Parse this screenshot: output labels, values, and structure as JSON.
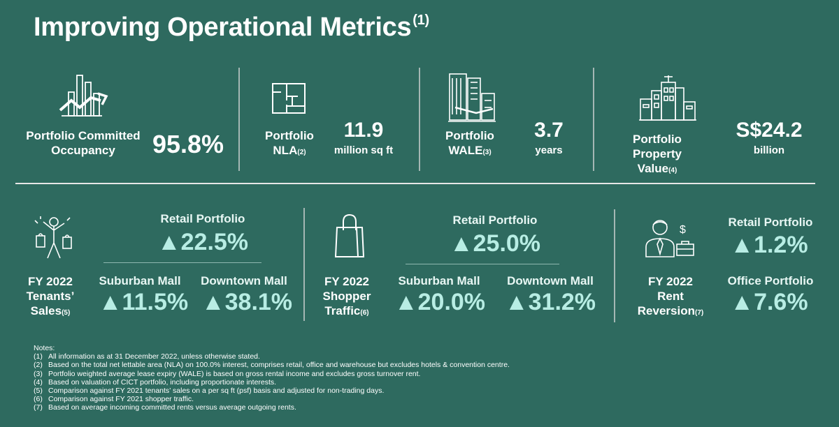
{
  "title": {
    "text": "Improving Operational Metrics",
    "sup": "(1)"
  },
  "top_metrics": {
    "occupancy": {
      "label_l1": "Portfolio Committed",
      "label_l2": "Occupancy",
      "value": "95.8%"
    },
    "nla": {
      "label_l1": "Portfolio",
      "label_l2": "NLA",
      "sup": "(2)",
      "value": "11.9",
      "unit": "million sq ft"
    },
    "wale": {
      "label_l1": "Portfolio",
      "label_l2": "WALE",
      "sup": "(3)",
      "value": "3.7",
      "unit": "years"
    },
    "property_value": {
      "label_l1": "Portfolio Property",
      "label_l2": "Value",
      "sup": "(4)",
      "value": "S$24.2",
      "unit": "billion"
    }
  },
  "tenant_sales": {
    "label_l1": "FY 2022",
    "label_l2": "Tenants’",
    "label_l3": "Sales",
    "sup": "(5)",
    "retail_label": "Retail Portfolio",
    "retail_value": "▲22.5%",
    "suburban_label": "Suburban Mall",
    "suburban_value": "▲11.5%",
    "downtown_label": "Downtown Mall",
    "downtown_value": "▲38.1%"
  },
  "shopper_traffic": {
    "label_l1": "FY 2022",
    "label_l2": "Shopper",
    "label_l3": "Traffic",
    "sup": "(6)",
    "retail_label": "Retail Portfolio",
    "retail_value": "▲25.0%",
    "suburban_label": "Suburban Mall",
    "suburban_value": "▲20.0%",
    "downtown_label": "Downtown Mall",
    "downtown_value": "▲31.2%"
  },
  "rent_reversion": {
    "label_l1": "FY 2022",
    "label_l2": "Rent",
    "label_l3": "Reversion",
    "sup": "(7)",
    "retail_label": "Retail Portfolio",
    "retail_value": "▲1.2%",
    "office_label": "Office Portfolio",
    "office_value": "▲7.6%"
  },
  "notes": {
    "heading": "Notes:",
    "items": [
      {
        "num": "(1)",
        "text": "All information as at 31 December 2022, unless otherwise stated."
      },
      {
        "num": "(2)",
        "text": "Based on the total net lettable area (NLA) on 100.0% interest, comprises retail, office and warehouse but excludes hotels & convention centre."
      },
      {
        "num": "(3)",
        "text": "Portfolio weighted average lease expiry (WALE) is based on gross rental income and excludes gross turnover rent."
      },
      {
        "num": "(4)",
        "text": "Based on valuation of CICT portfolio, including proportionate interests."
      },
      {
        "num": "(5)",
        "text": "Comparison against FY 2021 tenants’ sales on a per sq ft (psf) basis and adjusted for non-trading days."
      },
      {
        "num": "(6)",
        "text": "Comparison against FY 2021 shopper traffic."
      },
      {
        "num": "(7)",
        "text": "Based on average incoming committed rents versus average outgoing rents."
      }
    ]
  },
  "icons": {
    "occupancy": "bar-chart-growth-icon",
    "nla": "floor-plan-icon",
    "wale": "buildings-icon",
    "property_value": "city-skyline-icon",
    "tenant_sales": "shopper-with-bags-icon",
    "shopper_traffic": "shopping-bag-icon",
    "rent_reversion": "businessman-dollar-icon"
  },
  "colors": {
    "background": "#2e6a5f",
    "accent": "#b8ede4",
    "text": "#ffffff"
  }
}
